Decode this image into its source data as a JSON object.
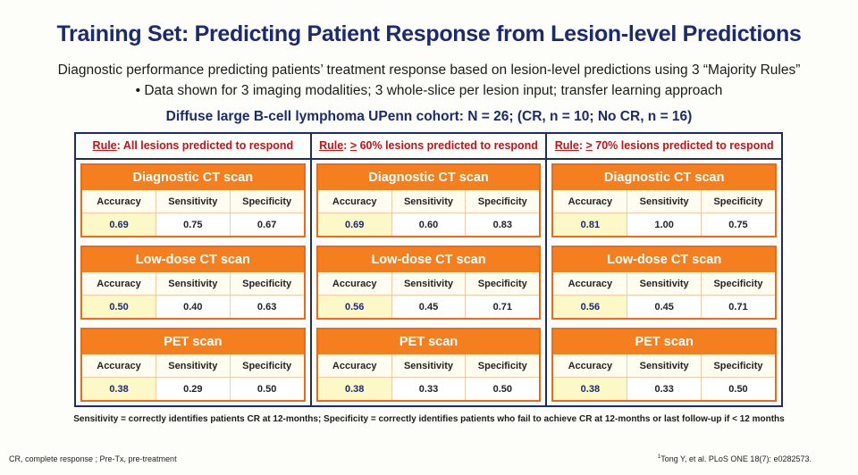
{
  "title": "Training Set: Predicting Patient Response from Lesion-level Predictions",
  "subtitle": "Diagnostic performance predicting patients’ treatment response based on lesion-level predictions using 3 “Majority Rules”",
  "bullet": "• Data shown for 3 imaging modalities; 3 whole-slice per lesion input; transfer learning approach",
  "cohort": "Diffuse large B-cell lymphoma UPenn cohort: N = 26; (CR, n = 10; No CR, n = 16)",
  "metric_headers": [
    "Accuracy",
    "Sensitivity",
    "Specificity"
  ],
  "rules": [
    {
      "rule_word": "Rule",
      "prefix": ": ",
      "ge": "",
      "text": "All lesions predicted to respond",
      "cards": [
        {
          "modality": "Diagnostic CT scan",
          "accuracy": "0.69",
          "sensitivity": "0.75",
          "specificity": "0.67"
        },
        {
          "modality": "Low-dose CT scan",
          "accuracy": "0.50",
          "sensitivity": "0.40",
          "specificity": "0.63"
        },
        {
          "modality": "PET scan",
          "accuracy": "0.38",
          "sensitivity": "0.29",
          "specificity": "0.50"
        }
      ]
    },
    {
      "rule_word": "Rule",
      "prefix": ": ",
      "ge": ">",
      "text": " 60% lesions predicted to respond",
      "cards": [
        {
          "modality": "Diagnostic CT scan",
          "accuracy": "0.69",
          "sensitivity": "0.60",
          "specificity": "0.83"
        },
        {
          "modality": "Low-dose CT scan",
          "accuracy": "0.56",
          "sensitivity": "0.45",
          "specificity": "0.71"
        },
        {
          "modality": "PET scan",
          "accuracy": "0.38",
          "sensitivity": "0.33",
          "specificity": "0.50"
        }
      ]
    },
    {
      "rule_word": "Rule",
      "prefix": ": ",
      "ge": ">",
      "text": " 70% lesions predicted to respond",
      "cards": [
        {
          "modality": "Diagnostic CT scan",
          "accuracy": "0.81",
          "sensitivity": "1.00",
          "specificity": "0.75"
        },
        {
          "modality": "Low-dose CT scan",
          "accuracy": "0.56",
          "sensitivity": "0.45",
          "specificity": "0.71"
        },
        {
          "modality": "PET scan",
          "accuracy": "0.38",
          "sensitivity": "0.33",
          "specificity": "0.50"
        }
      ]
    }
  ],
  "definitions": "Sensitivity = correctly identifies patients CR at 12-months; Specificity = correctly identifies patients who fail to achieve CR at 12-months or last follow-up if < 12 months",
  "footer": {
    "abbreviations": "CR, complete response ; Pre-Tx, pre-treatment",
    "citation_sup": "1",
    "citation": "Tong Y, et al. PLoS ONE 18(7): e0282573."
  },
  "colors": {
    "title_navy": "#1c2a6e",
    "rule_red": "#c0141b",
    "card_orange": "#f57f1f",
    "accuracy_highlight": "#fdf8c8"
  }
}
